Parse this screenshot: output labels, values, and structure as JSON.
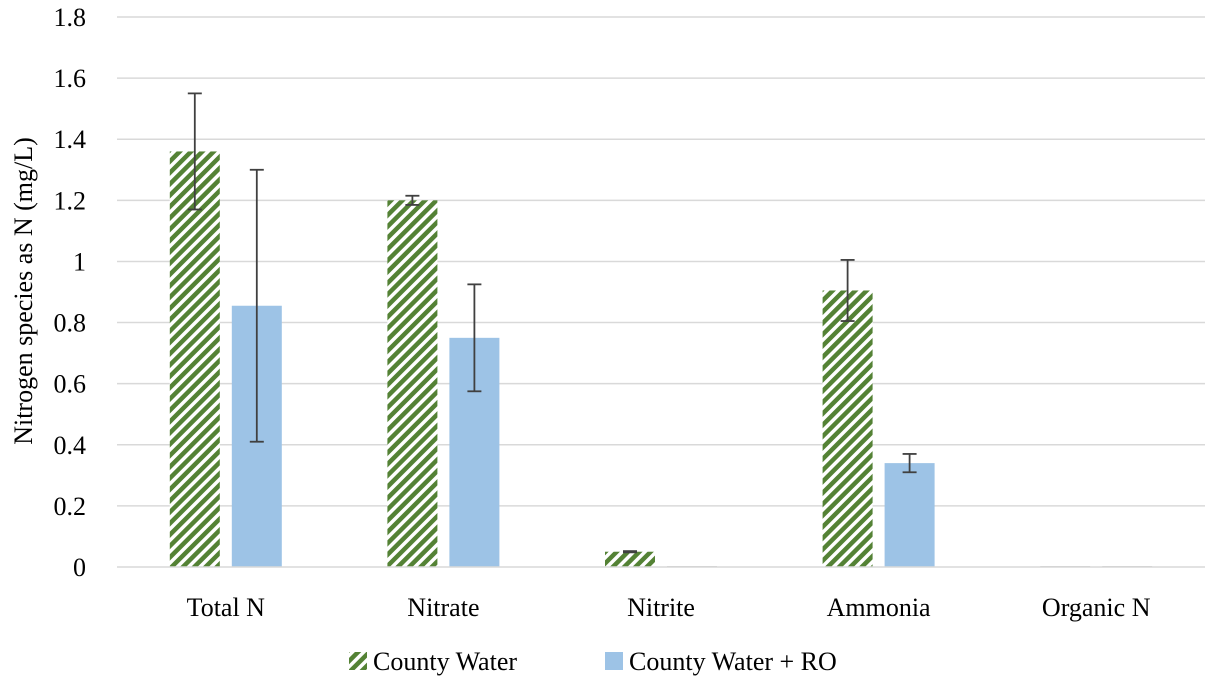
{
  "chart_data": {
    "type": "bar",
    "categories": [
      "Total N",
      "Nitrate",
      "Nitrite",
      "Ammonia",
      "Organic N"
    ],
    "series": [
      {
        "name": "County Water",
        "values": [
          1.36,
          1.2,
          0.05,
          0.905,
          0.0
        ],
        "error": [
          0.19,
          0.015,
          0.002,
          0.1,
          0.0
        ],
        "color": "#548235",
        "pattern": "diagonal-stripes"
      },
      {
        "name": "County Water + RO",
        "values": [
          0.855,
          0.75,
          0.0,
          0.34,
          0.0
        ],
        "error": [
          0.445,
          0.175,
          0.0,
          0.03,
          0.0
        ],
        "color": "#9DC3E6",
        "pattern": "solid"
      }
    ],
    "ylabel": "Nitrogen species as N (mg/L)",
    "xlabel": "",
    "ylim": [
      0,
      1.8
    ],
    "yticks": [
      "0",
      "0.2",
      "0.4",
      "0.6",
      "0.8",
      "1",
      "1.2",
      "1.4",
      "1.6",
      "1.8"
    ],
    "grid": true,
    "legend_position": "bottom",
    "gridline_color": "#D9D9D9",
    "errorbar_color": "#404040"
  }
}
